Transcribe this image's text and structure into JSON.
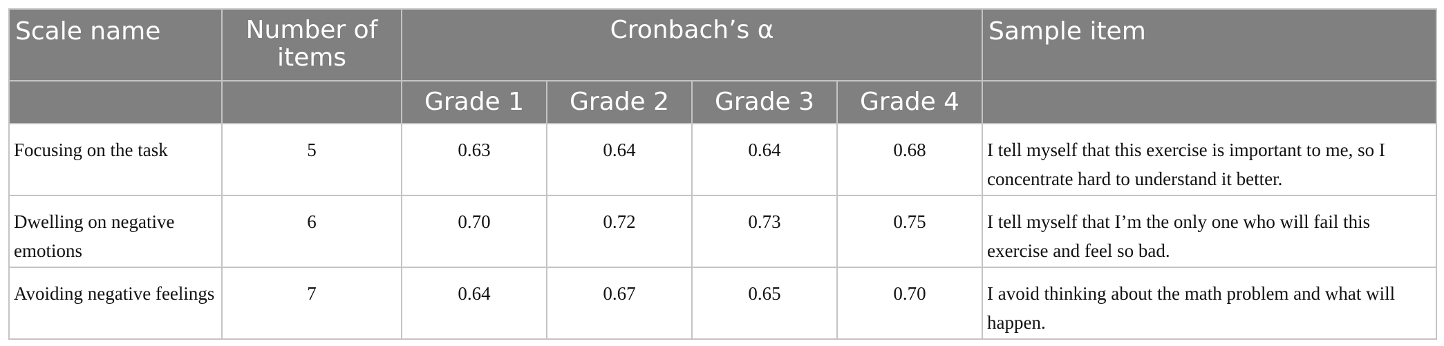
{
  "table": {
    "headers": {
      "scale_name": "Scale name",
      "number_of_items": "Number of items",
      "cronbach": "Cronbach’s α",
      "sample_item": "Sample item",
      "grades": [
        "Grade 1",
        "Grade 2",
        "Grade 3",
        "Grade 4"
      ]
    },
    "rows": [
      {
        "scale": "Focusing on the task",
        "items": "5",
        "alphas": [
          "0.63",
          "0.64",
          "0.64",
          "0.68"
        ],
        "sample": "I tell myself that this exercise is important to me, so I concentrate hard to understand it better."
      },
      {
        "scale": "Dwelling on negative emotions",
        "items": "6",
        "alphas": [
          "0.70",
          "0.72",
          "0.73",
          "0.75"
        ],
        "sample": "I tell myself that I’m the only one who will fail this exercise and feel so bad."
      },
      {
        "scale": "Avoiding negative feelings",
        "items": "7",
        "alphas": [
          "0.64",
          "0.67",
          "0.65",
          "0.70"
        ],
        "sample": "I avoid thinking about the math problem and what will happen."
      }
    ]
  }
}
